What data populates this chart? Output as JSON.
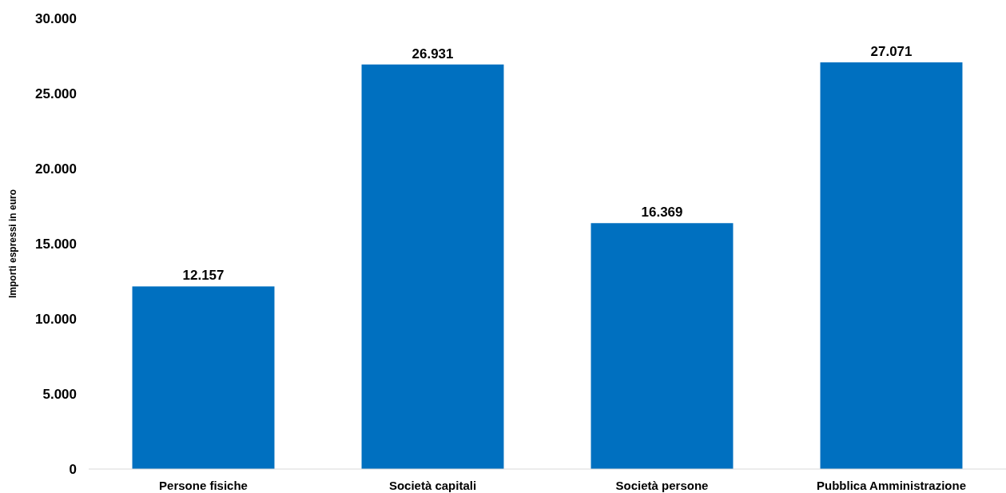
{
  "chart_data": {
    "type": "bar",
    "ylabel": "Importi espressi in euro",
    "categories": [
      "Persone fisiche",
      "Società capitali",
      "Società persone",
      "Pubblica Amministrazione"
    ],
    "values": [
      12157,
      26931,
      16369,
      27071
    ],
    "value_labels": [
      "12.157",
      "26.931",
      "16.369",
      "27.071"
    ],
    "color": "#0070c0",
    "ylim": [
      0,
      30000
    ],
    "yticks": [
      {
        "value": 0,
        "label": "0"
      },
      {
        "value": 5000,
        "label": "5.000"
      },
      {
        "value": 10000,
        "label": "10.000"
      },
      {
        "value": 15000,
        "label": "15.000"
      },
      {
        "value": 20000,
        "label": "20.000"
      },
      {
        "value": 25000,
        "label": "25.000"
      },
      {
        "value": 30000,
        "label": "30.000"
      }
    ],
    "grid": false
  }
}
